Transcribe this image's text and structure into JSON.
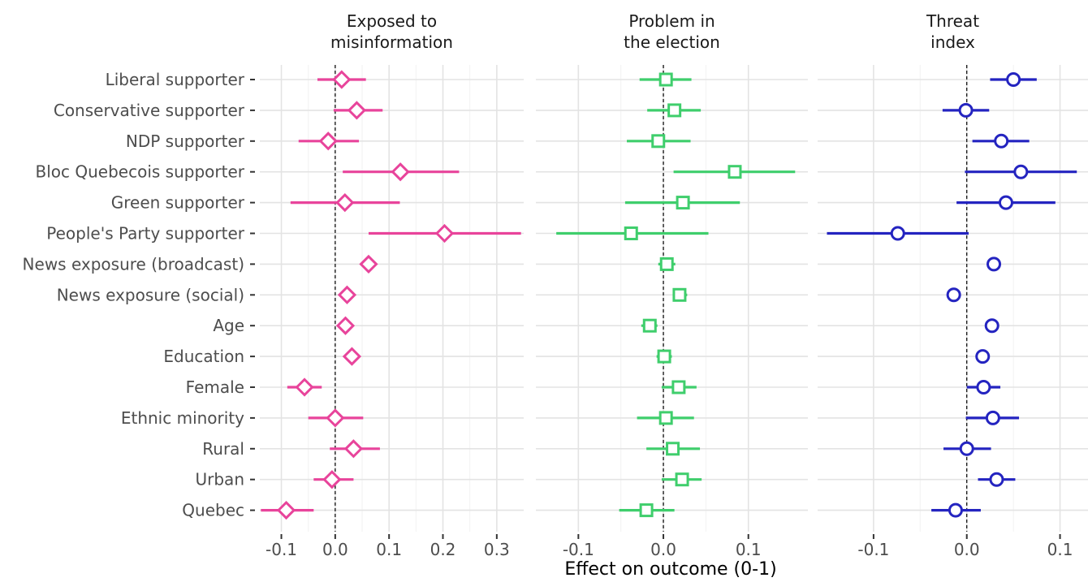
{
  "chart_data": {
    "type": "scatter",
    "subtype": "coefficient-plot-faceted",
    "xlabel": "Effect on outcome (0-1)",
    "reference_line": 0,
    "grid": true,
    "categories": [
      "Liberal supporter",
      "Conservative supporter",
      "NDP supporter",
      "Bloc Quebecois supporter",
      "Green supporter",
      "People's Party supporter",
      "News exposure (broadcast)",
      "News exposure (social)",
      "Age",
      "Education",
      "Female",
      "Ethnic minority",
      "Rural",
      "Urban",
      "Quebec"
    ],
    "panels": [
      {
        "title_lines": [
          "Exposed to",
          "misinformation"
        ],
        "marker": "diamond",
        "color": "#e8449b",
        "xlim": [
          -0.14,
          0.35
        ],
        "xticks": [
          -0.1,
          0.0,
          0.1,
          0.2,
          0.3
        ],
        "xtick_labels": [
          "-0.1",
          "0.0",
          "0.1",
          "0.2",
          "0.3"
        ],
        "estimates": [
          0.012,
          0.04,
          -0.013,
          0.121,
          0.018,
          0.203,
          0.062,
          0.022,
          0.019,
          0.031,
          -0.057,
          0.0,
          0.034,
          -0.006,
          -0.091
        ],
        "ci_low": [
          -0.033,
          -0.003,
          -0.068,
          0.014,
          -0.083,
          0.062,
          0.052,
          0.014,
          0.011,
          0.024,
          -0.089,
          -0.05,
          -0.01,
          -0.04,
          -0.138
        ],
        "ci_high": [
          0.057,
          0.088,
          0.044,
          0.23,
          0.12,
          0.345,
          0.072,
          0.03,
          0.027,
          0.038,
          -0.025,
          0.052,
          0.083,
          0.034,
          -0.04
        ]
      },
      {
        "title_lines": [
          "Problem in",
          "the election"
        ],
        "marker": "square",
        "color": "#3fce6c",
        "xlim": [
          -0.15,
          0.17
        ],
        "xticks": [
          -0.1,
          0.0,
          0.1
        ],
        "xtick_labels": [
          "-0.1",
          "0.0",
          "0.1"
        ],
        "estimates": [
          0.003,
          0.013,
          -0.006,
          0.084,
          0.023,
          -0.038,
          0.004,
          0.019,
          -0.016,
          0.001,
          0.018,
          0.003,
          0.011,
          0.022,
          -0.02
        ],
        "ci_low": [
          -0.028,
          -0.019,
          -0.043,
          0.012,
          -0.045,
          -0.126,
          -0.006,
          0.011,
          -0.026,
          -0.008,
          -0.002,
          -0.031,
          -0.02,
          -0.002,
          -0.052
        ],
        "ci_high": [
          0.033,
          0.044,
          0.032,
          0.155,
          0.09,
          0.053,
          0.014,
          0.028,
          -0.007,
          0.01,
          0.039,
          0.036,
          0.043,
          0.045,
          0.013
        ]
      },
      {
        "title_lines": [
          "Threat",
          "index"
        ],
        "marker": "circle",
        "color": "#2424c0",
        "xlim": [
          -0.16,
          0.13
        ],
        "xticks": [
          -0.1,
          0.0,
          0.1
        ],
        "xtick_labels": [
          "-0.1",
          "0.0",
          "0.1"
        ],
        "estimates": [
          0.05,
          -0.001,
          0.037,
          0.058,
          0.042,
          -0.074,
          0.029,
          -0.014,
          0.027,
          0.017,
          0.018,
          0.028,
          0.0,
          0.032,
          -0.012
        ],
        "ci_low": [
          0.025,
          -0.026,
          0.006,
          -0.002,
          -0.011,
          -0.15,
          0.022,
          -0.02,
          0.02,
          0.01,
          0.0,
          -0.001,
          -0.025,
          0.012,
          -0.038
        ],
        "ci_high": [
          0.075,
          0.024,
          0.067,
          0.118,
          0.095,
          0.002,
          0.036,
          -0.008,
          0.034,
          0.024,
          0.036,
          0.056,
          0.026,
          0.052,
          0.015
        ]
      }
    ]
  }
}
